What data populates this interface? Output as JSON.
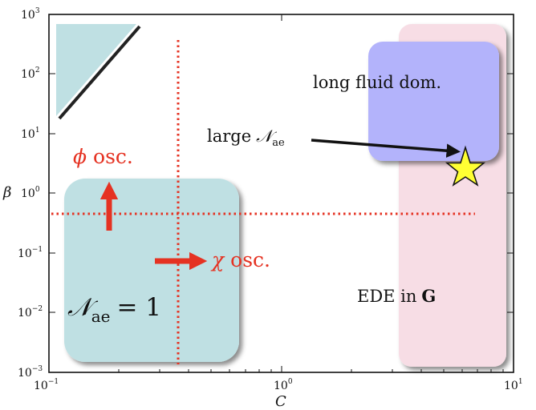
{
  "colors": {
    "teal_region": "#bfe0e3",
    "pink_region": "#f7dde5",
    "blue_region": "#b3b3fb",
    "red_accent": "#e53222",
    "star_fill": "#ffff33",
    "ink": "#111111"
  },
  "axes": {
    "xlabel": "C",
    "ylabel_symbol": "β",
    "xscale": "log",
    "yscale": "log",
    "xlim": [
      0.1,
      10
    ],
    "ylim": [
      0.001,
      1000
    ],
    "xticks": [
      {
        "base": "10",
        "exp": "−1"
      },
      {
        "base": "10",
        "exp": "0"
      },
      {
        "base": "10",
        "exp": "1"
      }
    ],
    "yticks": [
      {
        "base": "10",
        "exp": "−3"
      },
      {
        "base": "10",
        "exp": "−2"
      },
      {
        "base": "10",
        "exp": "−1"
      },
      {
        "base": "10",
        "exp": "0"
      },
      {
        "base": "10",
        "exp": "1"
      },
      {
        "base": "10",
        "exp": "2"
      },
      {
        "base": "10",
        "exp": "3"
      }
    ]
  },
  "labels": {
    "phi_symbol": "ϕ",
    "phi_text": "osc.",
    "chi_symbol": "χ",
    "chi_text": "osc.",
    "long_fluid": "long fluid dom.",
    "large_prefix": "large",
    "n_symbol": "𝒩",
    "n_sub": "ae",
    "n_eq": "= 1",
    "ede_prefix": "EDE in",
    "ede_bold": "G"
  }
}
